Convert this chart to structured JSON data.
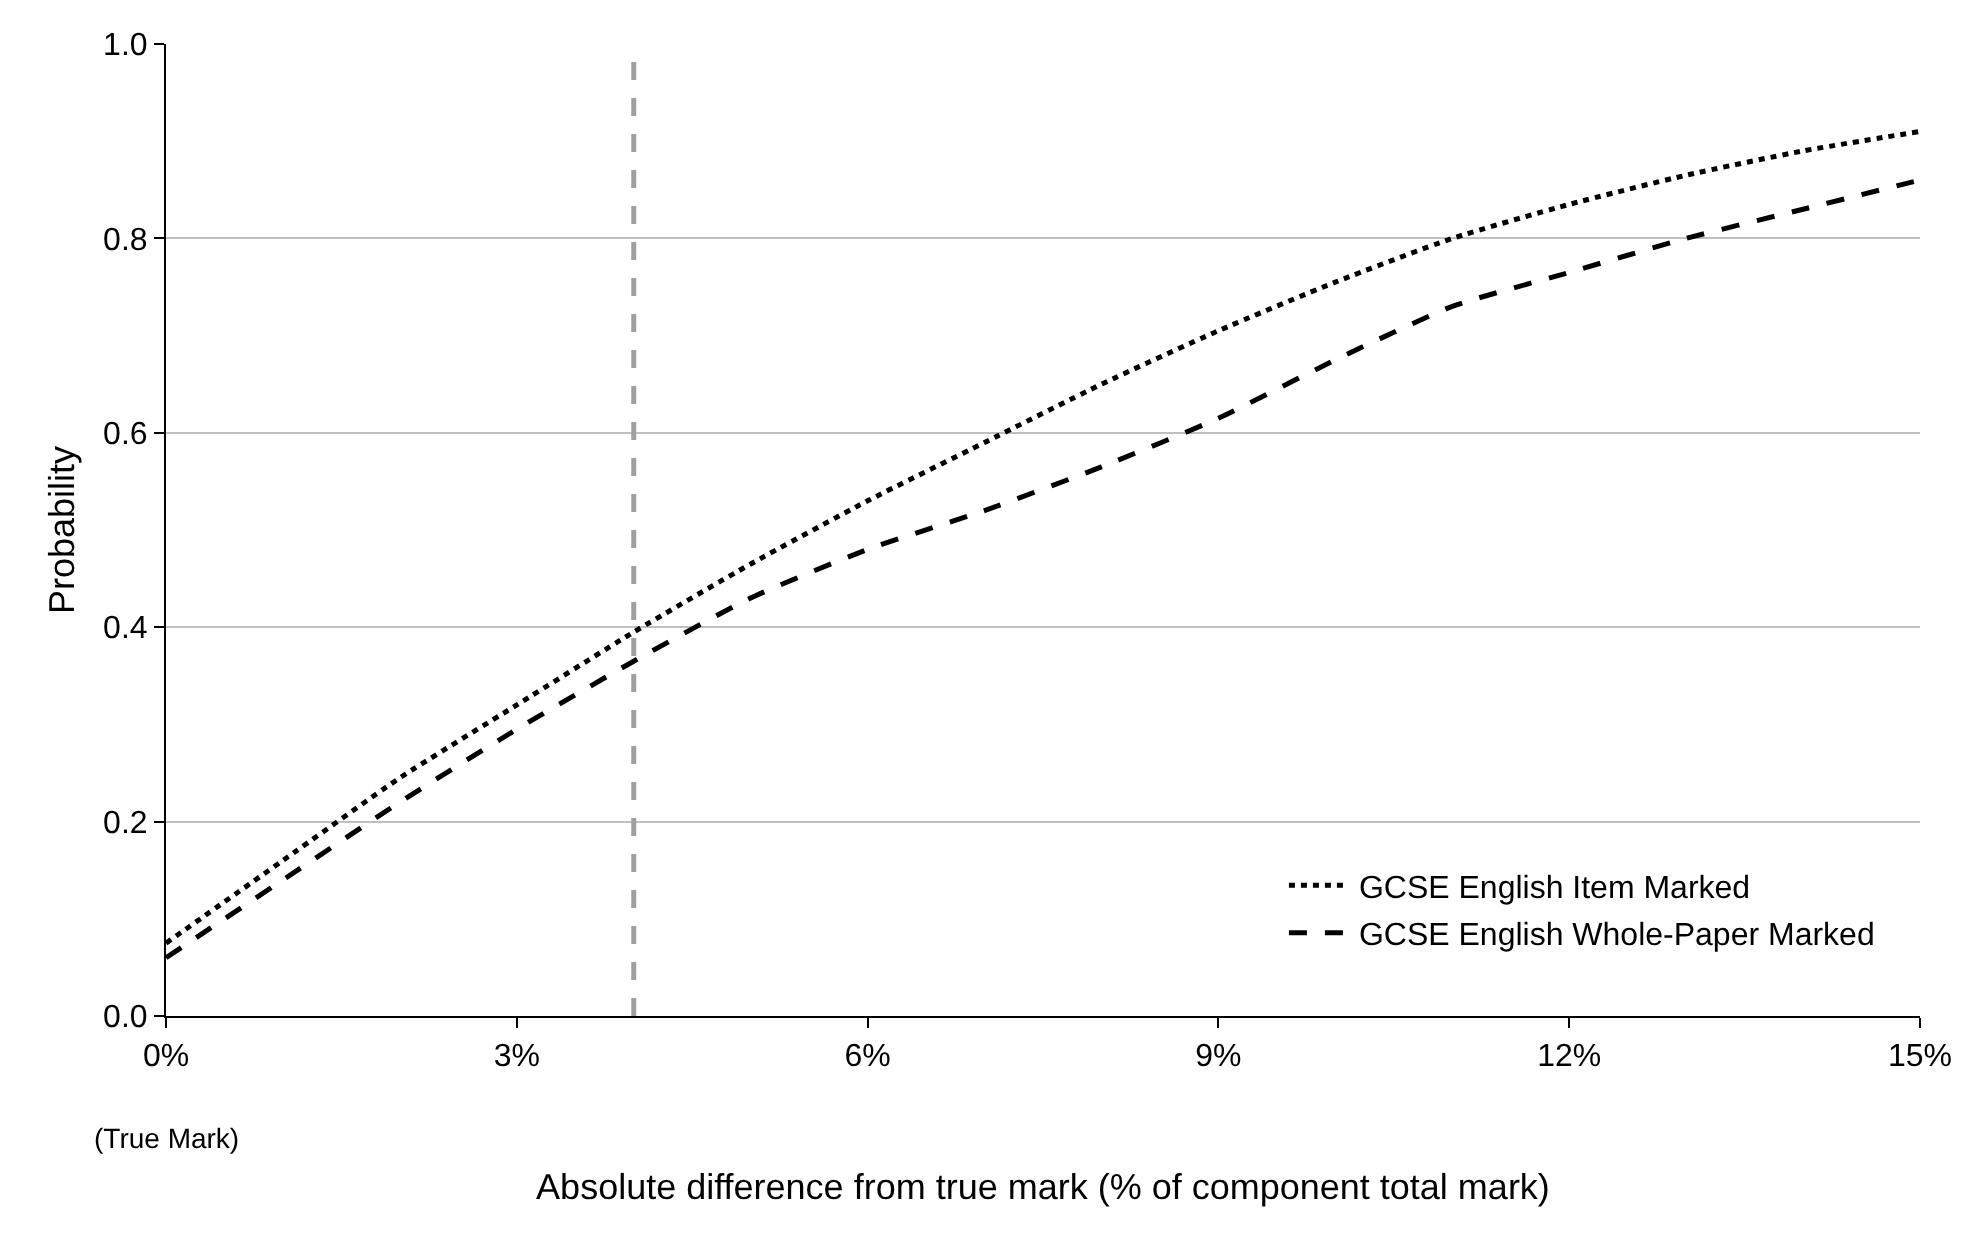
{
  "chart_data": {
    "type": "line",
    "xlabel": "Absolute difference from true mark (% of component total mark)",
    "ylabel": "Probability",
    "x": [
      0,
      1,
      2,
      3,
      4,
      5,
      6,
      7,
      8,
      9,
      10,
      11,
      12,
      13,
      14,
      15
    ],
    "series": [
      {
        "name": "GCSE English Item Marked",
        "color": "#000000",
        "line_style": "dotted",
        "values": [
          0.075,
          0.16,
          0.245,
          0.32,
          0.395,
          0.465,
          0.53,
          0.59,
          0.65,
          0.705,
          0.755,
          0.8,
          0.835,
          0.865,
          0.89,
          0.91
        ]
      },
      {
        "name": "GCSE English Whole-Paper Marked",
        "color": "#000000",
        "line_style": "dashed",
        "values": [
          0.06,
          0.14,
          0.22,
          0.295,
          0.365,
          0.43,
          0.48,
          0.52,
          0.565,
          0.615,
          0.675,
          0.73,
          0.765,
          0.8,
          0.83,
          0.86
        ]
      }
    ],
    "xlim": [
      0,
      15
    ],
    "xticks": [
      {
        "value": 0,
        "label": "0%"
      },
      {
        "value": 3,
        "label": "3%"
      },
      {
        "value": 6,
        "label": "6%"
      },
      {
        "value": 9,
        "label": "9%"
      },
      {
        "value": 12,
        "label": "12%"
      },
      {
        "value": 15,
        "label": "15%"
      }
    ],
    "ylim": [
      0,
      1
    ],
    "yticks": [
      {
        "value": 0,
        "label": "0.0"
      },
      {
        "value": 0.2,
        "label": "0.2"
      },
      {
        "value": 0.4,
        "label": "0.4"
      },
      {
        "value": 0.6,
        "label": "0.6"
      },
      {
        "value": 0.8,
        "label": "0.8"
      },
      {
        "value": 1,
        "label": "1.0"
      }
    ],
    "ref_lines": [
      {
        "axis": "x",
        "value": 4,
        "color": "#a0a0a0",
        "line_style": "dashed"
      }
    ],
    "annotations": [
      "(True Mark)"
    ],
    "grid": "y",
    "legend": "bottom right",
    "marker": "none"
  }
}
